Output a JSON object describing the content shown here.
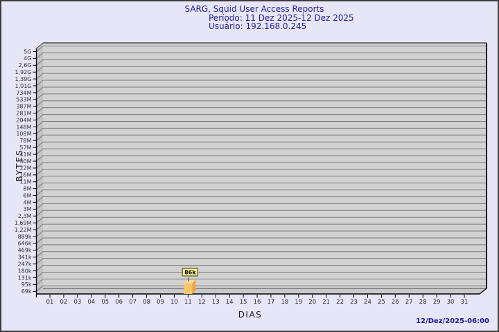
{
  "window": {
    "background": "#e6e6f8",
    "border_color": "#3c3c3c"
  },
  "header": {
    "title": "SARG, Squid User Access Reports",
    "period": "Período: 11 Dez 2025-12 Dez 2025",
    "user": "Usuário: 192.168.0.245",
    "text_color": "#1f1f9c"
  },
  "footer": {
    "timestamp": "12/Dez/2025-06:00"
  },
  "chart_data": {
    "type": "bar",
    "title": "SARG, Squid User Access Reports",
    "subtitle_period": "Período: 11 Dez 2025-12 Dez 2025",
    "subtitle_user": "Usuário: 192.168.0.245",
    "xlabel": "DIAS",
    "ylabel": "BYTES",
    "y_scale": "log",
    "ylim_bytes": [
      69000,
      5000000000
    ],
    "grid": true,
    "style": "3d-bar",
    "y_tick_labels": [
      "5G",
      "4G",
      "2,6G",
      "1,92G",
      "1,39G",
      "1,01G",
      "734M",
      "533M",
      "387M",
      "281M",
      "204M",
      "148M",
      "108M",
      "78M",
      "57M",
      "41M",
      "30M",
      "22M",
      "16M",
      "11M",
      "8M",
      "6M",
      "4M",
      "3M",
      "2,3M",
      "1,69M",
      "1,22M",
      "889k",
      "646k",
      "469k",
      "341k",
      "247k",
      "180k",
      "131k",
      "95k",
      "69k"
    ],
    "x_tick_labels": [
      "01",
      "02",
      "03",
      "04",
      "05",
      "06",
      "07",
      "08",
      "09",
      "10",
      "11",
      "12",
      "13",
      "14",
      "15",
      "16",
      "17",
      "18",
      "19",
      "20",
      "21",
      "22",
      "23",
      "24",
      "25",
      "26",
      "27",
      "28",
      "29",
      "30",
      "31"
    ],
    "bars": [
      {
        "category": "11",
        "value_bytes": 86000,
        "value_label": "86k"
      }
    ],
    "colors": {
      "plot_bg": "#d2d2d2",
      "wall": "#c3c3c3",
      "floor": "#c9c9c9",
      "gridline": "#7a7a7a",
      "edge_dark": "#4a4a4a",
      "axis": "#000000",
      "tick_text": "#2e2e2e",
      "bar_front": "#fbc46b",
      "bar_top": "#fddb9b",
      "bar_side": "#efa443",
      "value_box_bg": "#f7f0a0",
      "value_box_border": "#6e6e28",
      "value_text": "#000000"
    }
  }
}
